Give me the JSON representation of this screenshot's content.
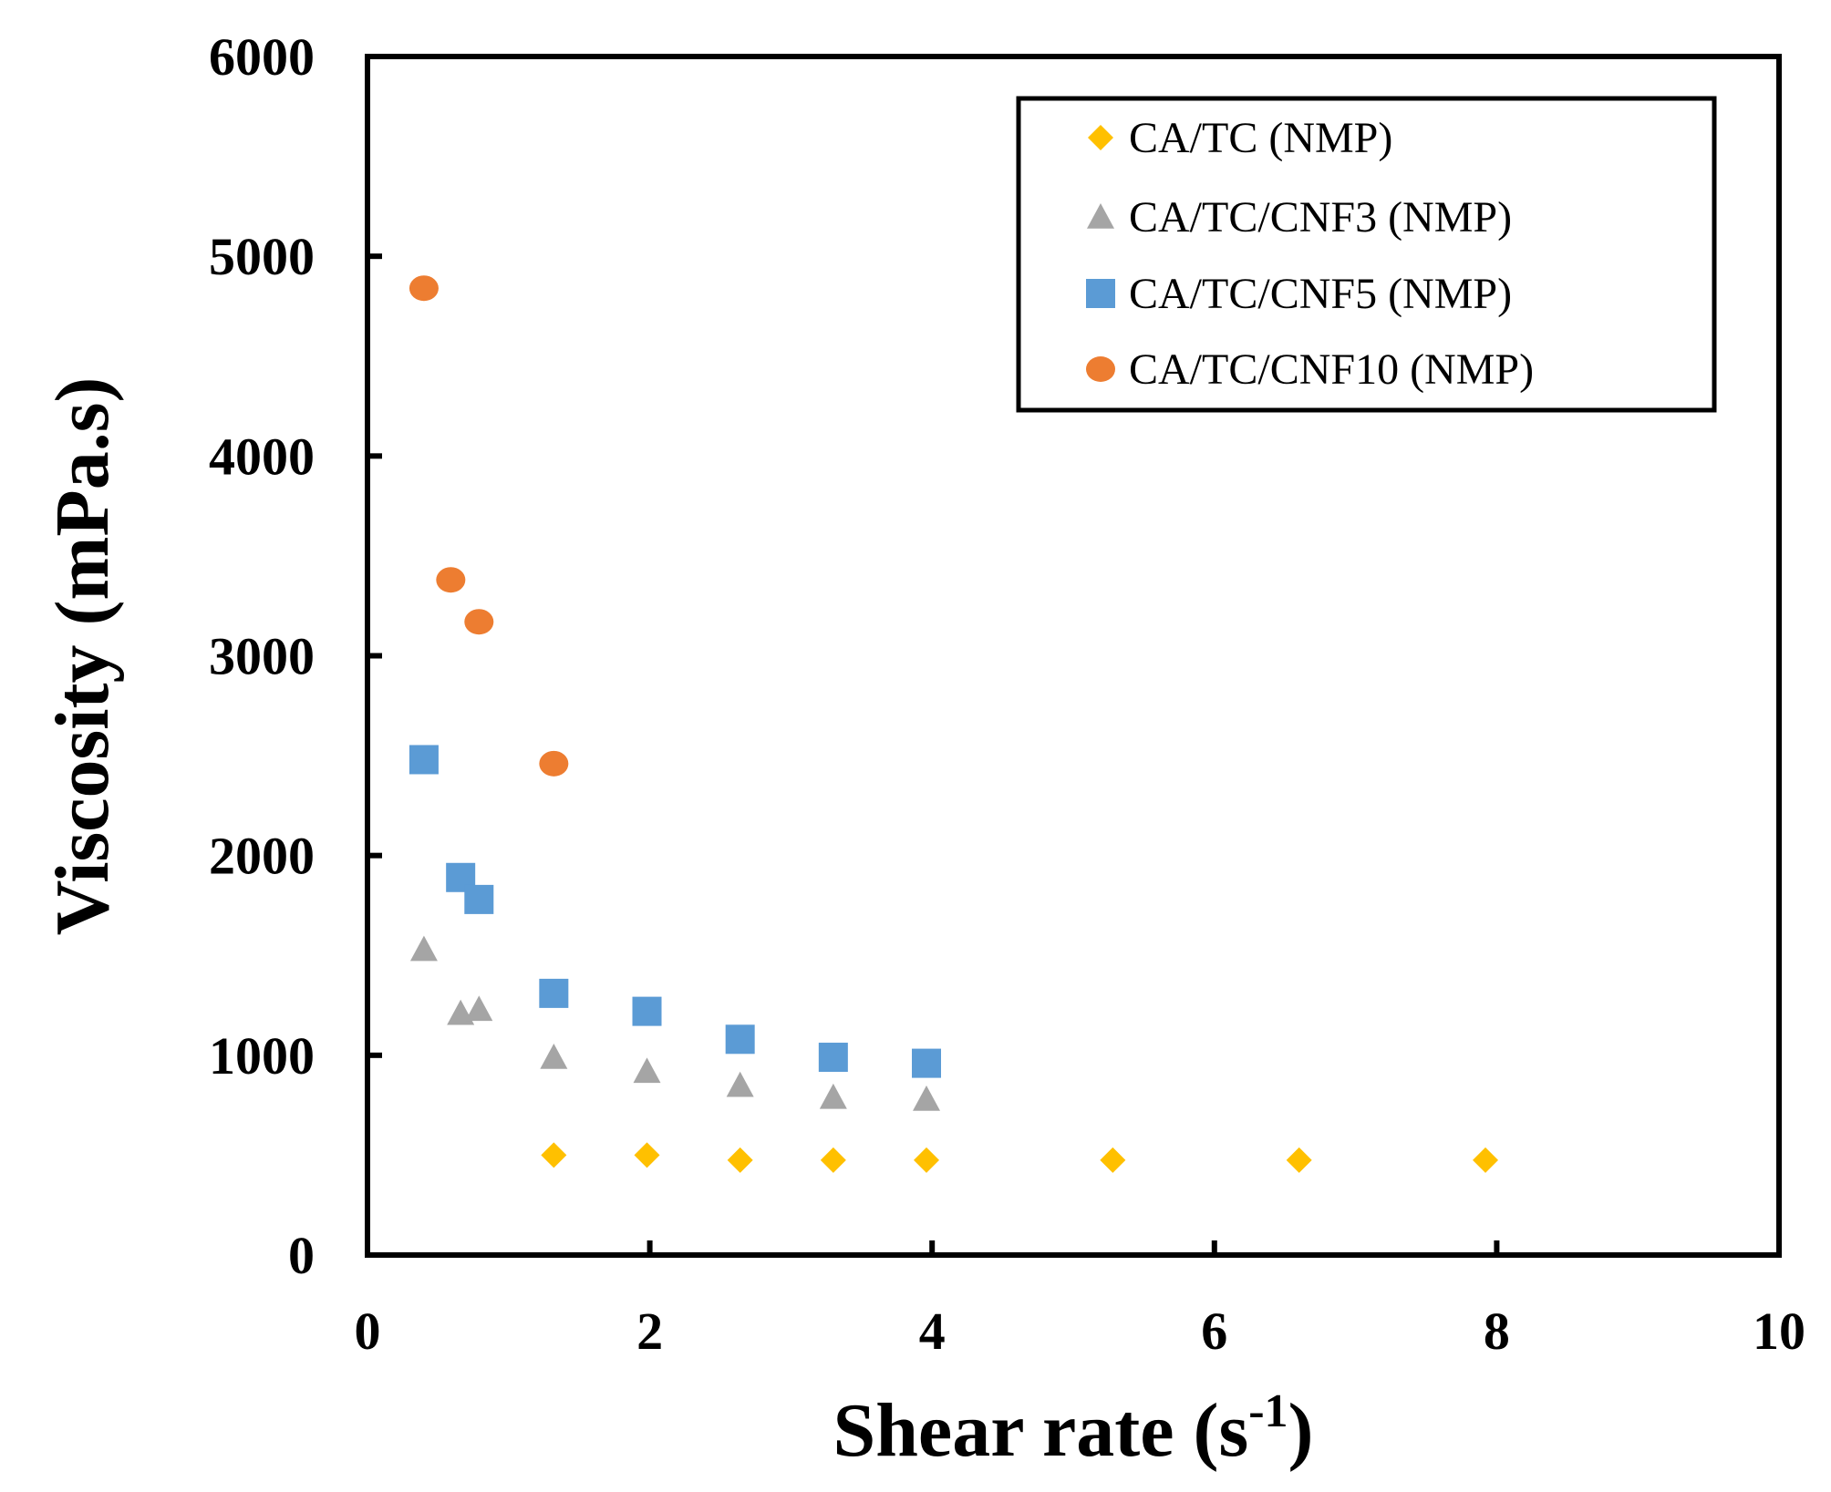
{
  "chart_data": {
    "type": "scatter",
    "title": "",
    "xlabel": "Shear rate (s",
    "xlabel_superscript": "-1",
    "xlabel_suffix": ")",
    "ylabel": "Viscosity (mPa.s)",
    "xlim": [
      0,
      10
    ],
    "ylim": [
      0,
      6000
    ],
    "x_ticks": [
      0,
      2,
      4,
      6,
      8,
      10
    ],
    "y_ticks": [
      0,
      1000,
      2000,
      3000,
      4000,
      5000,
      6000
    ],
    "grid": false,
    "legend_position": "top-right",
    "series": [
      {
        "name": "CA/TC (NMP)",
        "marker": "diamond",
        "color": "#FFC000",
        "points": [
          [
            1.32,
            500
          ],
          [
            1.98,
            500
          ],
          [
            2.64,
            475
          ],
          [
            3.3,
            475
          ],
          [
            3.96,
            475
          ],
          [
            5.28,
            475
          ],
          [
            6.6,
            475
          ],
          [
            7.92,
            475
          ]
        ]
      },
      {
        "name": "CA/TC/CNF3 (NMP)",
        "marker": "triangle",
        "color": "#A5A5A5",
        "points": [
          [
            0.4,
            1530
          ],
          [
            0.66,
            1210
          ],
          [
            0.79,
            1230
          ],
          [
            1.32,
            990
          ],
          [
            1.98,
            920
          ],
          [
            2.64,
            850
          ],
          [
            3.3,
            790
          ],
          [
            3.96,
            780
          ]
        ]
      },
      {
        "name": "CA/TC/CNF5 (NMP)",
        "marker": "square",
        "color": "#5B9BD5",
        "points": [
          [
            0.4,
            2480
          ],
          [
            0.66,
            1890
          ],
          [
            0.79,
            1780
          ],
          [
            1.32,
            1310
          ],
          [
            1.98,
            1220
          ],
          [
            2.64,
            1080
          ],
          [
            3.3,
            990
          ],
          [
            3.96,
            960
          ]
        ]
      },
      {
        "name": "CA/TC/CNF10 (NMP)",
        "marker": "circle",
        "color": "#ED7D31",
        "points": [
          [
            0.4,
            4840
          ],
          [
            0.59,
            3380
          ],
          [
            0.79,
            3170
          ],
          [
            1.32,
            2460
          ]
        ]
      }
    ]
  }
}
